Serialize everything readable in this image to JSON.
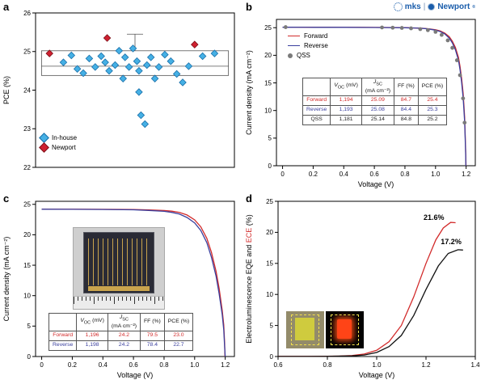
{
  "logo": {
    "mks": "mks",
    "sep": "|",
    "newport": "Newport",
    "reg": "®",
    "color": "#1a5dab"
  },
  "chart_data": [
    {
      "id": "a",
      "label": "a",
      "type": "scatter",
      "xlabel": "",
      "ylabel": "PCE (%)",
      "xlim": [
        0,
        1
      ],
      "ylim": [
        22,
        26
      ],
      "xticks": [],
      "xtick_labels": [],
      "yticks": [
        22,
        23,
        24,
        25,
        26
      ],
      "ytick_labels": [
        "22",
        "23",
        "24",
        "25",
        "26"
      ],
      "legend_position": "bottom-left",
      "series": [
        {
          "name": "In-house",
          "color": "#45b0e5",
          "stroke": "#1a6fa8",
          "marker": "diamond",
          "points": [
            [
              0.14,
              24.72
            ],
            [
              0.18,
              24.9
            ],
            [
              0.21,
              24.55
            ],
            [
              0.24,
              24.44
            ],
            [
              0.27,
              24.82
            ],
            [
              0.3,
              24.6
            ],
            [
              0.33,
              24.88
            ],
            [
              0.35,
              24.72
            ],
            [
              0.37,
              24.5
            ],
            [
              0.4,
              24.65
            ],
            [
              0.42,
              25.02
            ],
            [
              0.44,
              24.3
            ],
            [
              0.45,
              24.85
            ],
            [
              0.47,
              24.6
            ],
            [
              0.49,
              25.08
            ],
            [
              0.51,
              24.75
            ],
            [
              0.52,
              24.5
            ],
            [
              0.52,
              23.95
            ],
            [
              0.53,
              23.35
            ],
            [
              0.55,
              23.12
            ],
            [
              0.56,
              24.65
            ],
            [
              0.58,
              24.85
            ],
            [
              0.6,
              24.3
            ],
            [
              0.62,
              24.6
            ],
            [
              0.65,
              24.92
            ],
            [
              0.68,
              24.75
            ],
            [
              0.71,
              24.42
            ],
            [
              0.74,
              24.2
            ],
            [
              0.77,
              24.62
            ],
            [
              0.84,
              24.88
            ],
            [
              0.9,
              24.95
            ]
          ]
        },
        {
          "name": "Newport",
          "color": "#cf2030",
          "stroke": "#7c0f18",
          "marker": "diamond",
          "points": [
            [
              0.07,
              24.95
            ],
            [
              0.36,
              25.35
            ],
            [
              0.8,
              25.18
            ]
          ]
        }
      ],
      "boxplot": {
        "x_left": 0.03,
        "x_right": 0.97,
        "q1": 24.38,
        "median": 24.62,
        "q3": 25.02,
        "whisker_top": 25.45,
        "whisker_center": 0.5
      }
    },
    {
      "id": "b",
      "label": "b",
      "type": "line",
      "xlabel": "Voltage (V)",
      "ylabel": "Current density (mA cm⁻²)",
      "xlim": [
        -0.04,
        1.26
      ],
      "ylim": [
        0,
        26.5
      ],
      "xticks": [
        0,
        0.2,
        0.4,
        0.6,
        0.8,
        1.0,
        1.2
      ],
      "xtick_labels": [
        "0",
        "0.2",
        "0.4",
        "0.6",
        "0.8",
        "1.0",
        "1.2"
      ],
      "yticks": [
        0,
        5,
        10,
        15,
        20,
        25
      ],
      "ytick_labels": [
        "0",
        "5",
        "10",
        "15",
        "20",
        "25"
      ],
      "legend_position": "upper-left",
      "series": [
        {
          "name": "Forward",
          "color": "#d22b2b",
          "marker": "none",
          "points": [
            [
              0,
              25.09
            ],
            [
              0.1,
              25.09
            ],
            [
              0.2,
              25.08
            ],
            [
              0.3,
              25.08
            ],
            [
              0.4,
              25.07
            ],
            [
              0.5,
              25.06
            ],
            [
              0.6,
              25.05
            ],
            [
              0.7,
              25.03
            ],
            [
              0.8,
              25.0
            ],
            [
              0.85,
              24.97
            ],
            [
              0.9,
              24.92
            ],
            [
              0.95,
              24.82
            ],
            [
              1.0,
              24.62
            ],
            [
              1.03,
              24.4
            ],
            [
              1.06,
              24.02
            ],
            [
              1.09,
              23.35
            ],
            [
              1.11,
              22.55
            ],
            [
              1.13,
              21.4
            ],
            [
              1.15,
              19.6
            ],
            [
              1.16,
              18.0
            ],
            [
              1.17,
              15.9
            ],
            [
              1.18,
              13.2
            ],
            [
              1.185,
              11.2
            ],
            [
              1.19,
              8.8
            ],
            [
              1.194,
              5.6
            ],
            [
              1.197,
              2.6
            ],
            [
              1.199,
              0
            ]
          ]
        },
        {
          "name": "Reverse",
          "color": "#3a3f9e",
          "marker": "none",
          "points": [
            [
              0,
              25.08
            ],
            [
              0.2,
              25.07
            ],
            [
              0.4,
              25.06
            ],
            [
              0.6,
              25.04
            ],
            [
              0.8,
              24.99
            ],
            [
              0.9,
              24.9
            ],
            [
              0.95,
              24.78
            ],
            [
              1.0,
              24.56
            ],
            [
              1.03,
              24.3
            ],
            [
              1.06,
              23.88
            ],
            [
              1.09,
              23.1
            ],
            [
              1.11,
              22.25
            ],
            [
              1.13,
              21.0
            ],
            [
              1.15,
              19.1
            ],
            [
              1.16,
              17.4
            ],
            [
              1.17,
              15.2
            ],
            [
              1.18,
              12.4
            ],
            [
              1.185,
              10.4
            ],
            [
              1.19,
              8.0
            ],
            [
              1.194,
              4.9
            ],
            [
              1.197,
              2.0
            ],
            [
              1.198,
              0
            ]
          ]
        },
        {
          "name": "QSS",
          "color": "#7a7a7a",
          "marker": "circle",
          "points": [
            [
              0.02,
              25.1
            ],
            [
              0.65,
              25.04
            ],
            [
              0.72,
              25.0
            ],
            [
              0.78,
              24.96
            ],
            [
              0.84,
              24.88
            ],
            [
              0.9,
              24.74
            ],
            [
              0.95,
              24.55
            ],
            [
              1.0,
              24.25
            ],
            [
              1.04,
              23.7
            ],
            [
              1.08,
              22.7
            ],
            [
              1.11,
              21.35
            ],
            [
              1.14,
              19.1
            ],
            [
              1.16,
              16.4
            ],
            [
              1.18,
              12.2
            ],
            [
              1.19,
              7.8
            ]
          ]
        }
      ],
      "table": {
        "headers": [
          {
            "sym": "V",
            "sub": "OC",
            "unit": "(mV)"
          },
          {
            "sym": "J",
            "sub": "SC",
            "unit": "(mA cm⁻²)"
          },
          {
            "plain": "FF (%)"
          },
          {
            "plain": "PCE (%)"
          }
        ],
        "rows": [
          {
            "name": "Forward",
            "color": "#d22b2b",
            "values": [
              "1,194",
              "25.09",
              "84.7",
              "25.4"
            ]
          },
          {
            "name": "Reverse",
            "color": "#3a3f9e",
            "values": [
              "1,193",
              "25.08",
              "84.4",
              "25.3"
            ]
          },
          {
            "name": "QSS",
            "color": "#222222",
            "values": [
              "1,181",
              "25.14",
              "84.8",
              "25.2"
            ]
          }
        ]
      }
    },
    {
      "id": "c",
      "label": "c",
      "type": "line",
      "xlabel": "Voltage (V)",
      "ylabel": "Current density (mA cm⁻²)",
      "xlim": [
        -0.04,
        1.26
      ],
      "ylim": [
        0,
        25.5
      ],
      "xticks": [
        0,
        0.2,
        0.4,
        0.6,
        0.8,
        1.0,
        1.2
      ],
      "xtick_labels": [
        "0",
        "0.2",
        "0.4",
        "0.6",
        "0.8",
        "1.0",
        "1.2"
      ],
      "yticks": [
        0,
        5,
        10,
        15,
        20,
        25
      ],
      "ytick_labels": [
        "0",
        "5",
        "10",
        "15",
        "20",
        "25"
      ],
      "series": [
        {
          "name": "Forward",
          "color": "#d22b2b",
          "marker": "none",
          "points": [
            [
              0,
              24.2
            ],
            [
              0.2,
              24.2
            ],
            [
              0.4,
              24.18
            ],
            [
              0.6,
              24.14
            ],
            [
              0.7,
              24.08
            ],
            [
              0.8,
              23.98
            ],
            [
              0.85,
              23.88
            ],
            [
              0.9,
              23.68
            ],
            [
              0.95,
              23.25
            ],
            [
              1.0,
              22.45
            ],
            [
              1.04,
              21.3
            ],
            [
              1.08,
              19.4
            ],
            [
              1.11,
              17.1
            ],
            [
              1.14,
              14.0
            ],
            [
              1.16,
              11.2
            ],
            [
              1.18,
              7.6
            ],
            [
              1.19,
              5.2
            ],
            [
              1.196,
              2.2
            ],
            [
              1.198,
              0
            ]
          ]
        },
        {
          "name": "Reverse",
          "color": "#3a3f9e",
          "marker": "none",
          "points": [
            [
              0,
              24.2
            ],
            [
              0.2,
              24.19
            ],
            [
              0.4,
              24.16
            ],
            [
              0.6,
              24.1
            ],
            [
              0.7,
              24.0
            ],
            [
              0.8,
              23.85
            ],
            [
              0.85,
              23.68
            ],
            [
              0.9,
              23.4
            ],
            [
              0.95,
              22.85
            ],
            [
              1.0,
              21.95
            ],
            [
              1.04,
              20.7
            ],
            [
              1.08,
              18.7
            ],
            [
              1.11,
              16.3
            ],
            [
              1.14,
              13.2
            ],
            [
              1.16,
              10.3
            ],
            [
              1.18,
              6.9
            ],
            [
              1.19,
              4.4
            ],
            [
              1.196,
              1.6
            ],
            [
              1.2,
              0
            ]
          ]
        }
      ],
      "table": {
        "headers": [
          {
            "sym": "V",
            "sub": "OC",
            "unit": "(mV)"
          },
          {
            "sym": "J",
            "sub": "SC",
            "unit": "(mA cm⁻²)"
          },
          {
            "plain": "FF (%)"
          },
          {
            "plain": "PCE (%)"
          }
        ],
        "rows": [
          {
            "name": "Forward",
            "color": "#d22b2b",
            "values": [
              "1,196",
              "24.2",
              "79.5",
              "23.0"
            ]
          },
          {
            "name": "Reverse",
            "color": "#3a3f9e",
            "values": [
              "1,198",
              "24.2",
              "78.4",
              "22.7"
            ]
          }
        ]
      },
      "inset": "module-photo-with-ruler"
    },
    {
      "id": "d",
      "label": "d",
      "type": "line",
      "xlabel": "Voltage (V)",
      "ylabel_parts": [
        {
          "text": "Electroluminescence EQE and ",
          "color": "#000000"
        },
        {
          "text": "ECE",
          "color": "#d22b2b"
        },
        {
          "text": " (%)",
          "color": "#000000"
        }
      ],
      "xlim": [
        0.6,
        1.4
      ],
      "ylim": [
        0,
        25
      ],
      "xticks": [
        0.6,
        0.8,
        1.0,
        1.2,
        1.4
      ],
      "xtick_labels": [
        "0.6",
        "0.8",
        "1.0",
        "1.2",
        "1.4"
      ],
      "yticks": [
        0,
        5,
        10,
        15,
        20,
        25
      ],
      "ytick_labels": [
        "0",
        "5",
        "10",
        "15",
        "20",
        "25"
      ],
      "series": [
        {
          "name": "ECE",
          "color": "#d22b2b",
          "marker": "none",
          "points": [
            [
              0.6,
              0.02
            ],
            [
              0.7,
              0.02
            ],
            [
              0.8,
              0.05
            ],
            [
              0.85,
              0.08
            ],
            [
              0.9,
              0.15
            ],
            [
              0.95,
              0.4
            ],
            [
              1.0,
              1.0
            ],
            [
              1.05,
              2.4
            ],
            [
              1.1,
              5.0
            ],
            [
              1.15,
              9.6
            ],
            [
              1.2,
              15.0
            ],
            [
              1.24,
              18.8
            ],
            [
              1.27,
              20.7
            ],
            [
              1.3,
              21.6
            ],
            [
              1.32,
              21.55
            ]
          ]
        },
        {
          "name": "EQE",
          "color": "#111111",
          "marker": "none",
          "points": [
            [
              0.6,
              0.01
            ],
            [
              0.8,
              0.03
            ],
            [
              0.9,
              0.1
            ],
            [
              0.95,
              0.25
            ],
            [
              1.0,
              0.65
            ],
            [
              1.05,
              1.6
            ],
            [
              1.1,
              3.4
            ],
            [
              1.15,
              6.6
            ],
            [
              1.2,
              10.8
            ],
            [
              1.25,
              14.6
            ],
            [
              1.29,
              16.6
            ],
            [
              1.33,
              17.2
            ],
            [
              1.35,
              17.15
            ]
          ]
        }
      ],
      "annotations": [
        {
          "x": 1.19,
          "y": 22.0,
          "text": "21.6%",
          "color": "#d22b2b"
        },
        {
          "x": 1.26,
          "y": 18.1,
          "text": "17.2%",
          "color": "#111111"
        }
      ],
      "inset": "el-device-photos"
    }
  ]
}
